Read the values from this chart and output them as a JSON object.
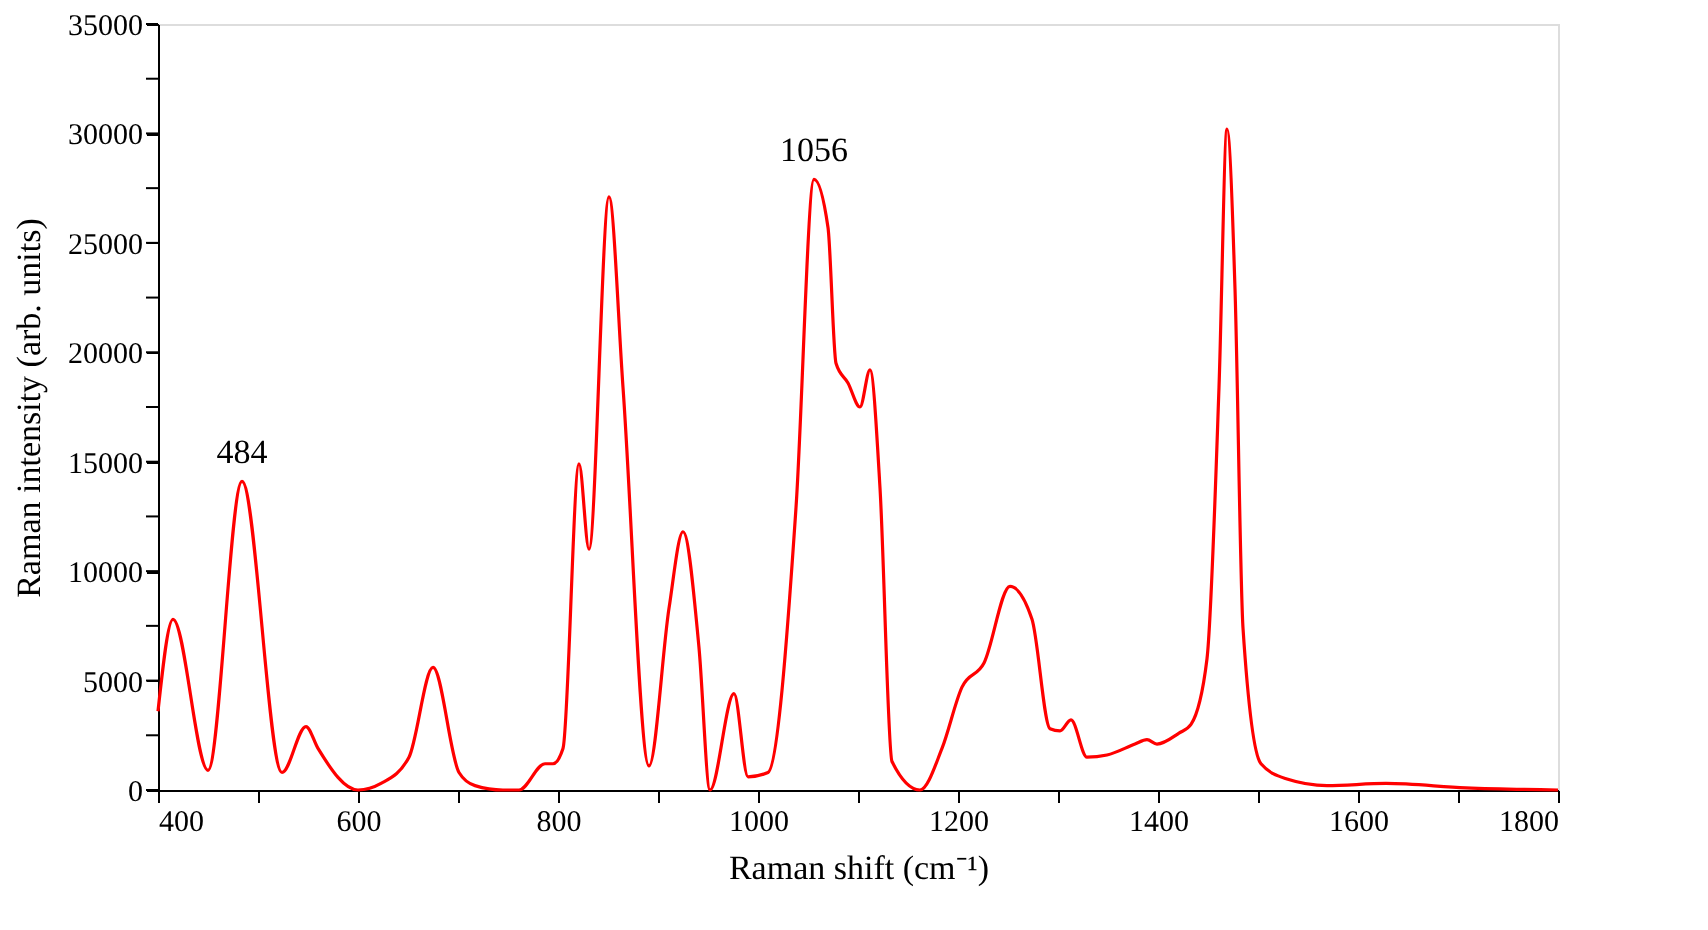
{
  "chart_data": {
    "type": "line",
    "xlabel": "Raman shift (cm⁻¹)",
    "ylabel": "Raman intensity (arb. units)",
    "x": [
      400,
      415,
      450,
      484,
      524,
      548,
      560,
      600,
      623,
      651,
      675,
      701,
      717,
      745,
      761,
      787,
      795,
      805,
      821,
      831,
      851,
      865,
      891,
      911,
      925,
      941,
      952,
      976,
      990,
      1010,
      1038,
      1056,
      1070,
      1078,
      1090,
      1102,
      1112,
      1122,
      1134,
      1162,
      1184,
      1204,
      1226,
      1252,
      1274,
      1292,
      1302,
      1313,
      1329,
      1349,
      1377,
      1389,
      1399,
      1421,
      1433,
      1449,
      1461,
      1469,
      1477,
      1485,
      1503,
      1529,
      1569,
      1628,
      1708,
      1800
    ],
    "series": [
      {
        "color": "#ff0000",
        "values": [
          3600,
          7800,
          900,
          14100,
          800,
          2900,
          1900,
          0,
          300,
          1500,
          5600,
          800,
          200,
          0,
          0,
          1200,
          1200,
          1900,
          14900,
          11000,
          27100,
          18400,
          1100,
          8300,
          11800,
          6500,
          0,
          4400,
          600,
          800,
          12900,
          27900,
          25700,
          19500,
          18600,
          17500,
          19200,
          13800,
          1300,
          0,
          1900,
          4700,
          5800,
          9300,
          7800,
          2800,
          2700,
          3200,
          1500,
          1600,
          2100,
          2300,
          2100,
          2600,
          3000,
          6000,
          18400,
          30200,
          22900,
          7400,
          1200,
          500,
          200,
          300,
          100,
          0
        ]
      }
    ],
    "xlim": [
      400,
      1800
    ],
    "xticks": [
      400,
      {
        "value": 500,
        "label": null
      },
      600,
      {
        "value": 700,
        "label": null
      },
      800,
      {
        "value": 900,
        "label": null
      },
      1000,
      {
        "value": 1100,
        "label": null
      },
      1200,
      {
        "value": 1300,
        "label": null
      },
      1400,
      {
        "value": 1500,
        "label": null
      },
      1600,
      {
        "value": 1700,
        "label": null
      },
      1800
    ],
    "ylim": [
      0,
      35000
    ],
    "yticks": [
      0,
      {
        "value": 2500,
        "label": null
      },
      5000,
      {
        "value": 7500,
        "label": null
      },
      10000,
      {
        "value": 12500,
        "label": null
      },
      15000,
      {
        "value": 17500,
        "label": null
      },
      20000,
      {
        "value": 22500,
        "label": null
      },
      25000,
      {
        "value": 27500,
        "label": null
      },
      30000,
      {
        "value": 32500,
        "label": null
      },
      35000
    ],
    "annotations": [
      {
        "text": "484",
        "x": 484,
        "y": 14100
      },
      {
        "text": "1056",
        "x": 1056,
        "y": 27900
      }
    ],
    "grid": false,
    "marker": "none",
    "line_style": "solid"
  }
}
